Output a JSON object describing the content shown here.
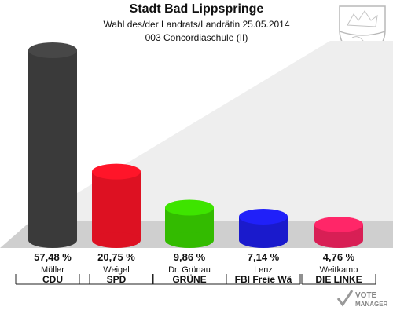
{
  "header": {
    "title": "Stadt Bad Lippspringe",
    "subtitle": "Wahl des/der Landrats/Landrätin 25.05.2014",
    "district": "003 Concordiaschule (II)"
  },
  "logo": {
    "text_line1": "VOTE",
    "text_line2": "MANAGER"
  },
  "chart_data": {
    "type": "bar",
    "title": "Stadt Bad Lippspringe",
    "categories": [
      "Müller",
      "Weigel",
      "Dr. Grünau",
      "Lenz",
      "Weitkamp"
    ],
    "parties": [
      "CDU",
      "SPD",
      "GRÜNE",
      "FBI Freie Wä",
      "DIE LINKE"
    ],
    "values": [
      57.48,
      20.75,
      9.86,
      7.14,
      4.76
    ],
    "value_labels": [
      "57,48 %",
      "20,75 %",
      "9,86 %",
      "7,14 %",
      "4,76 %"
    ],
    "colors": [
      "#3a3a3a",
      "#dd1122",
      "#33bb00",
      "#1a1acc",
      "#d81f55"
    ],
    "ylim": [
      0,
      57.48
    ],
    "grid": false
  }
}
